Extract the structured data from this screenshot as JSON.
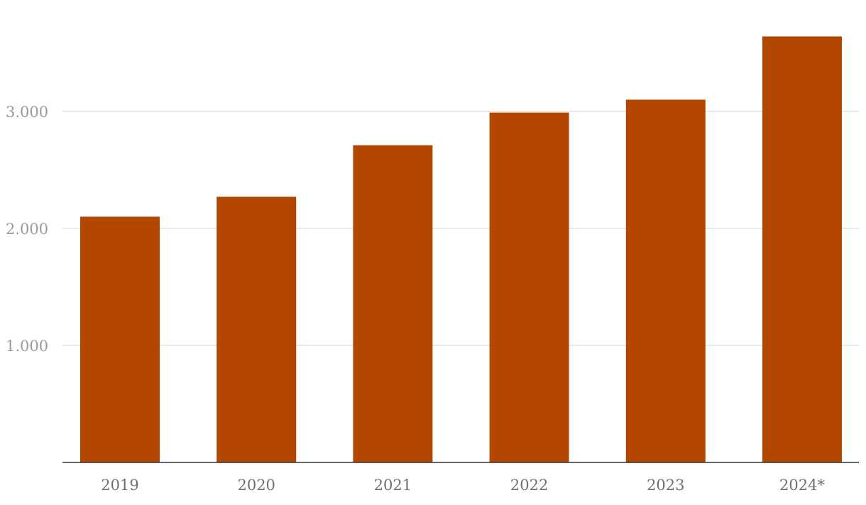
{
  "chart_data": {
    "type": "bar",
    "categories": [
      "2019",
      "2020",
      "2021",
      "2022",
      "2023",
      "2024*"
    ],
    "values": [
      2100,
      2270,
      2710,
      2990,
      3100,
      3640
    ],
    "title": "",
    "xlabel": "",
    "ylabel": "",
    "ylim": [
      0,
      3800
    ],
    "yticks": [
      1000,
      2000,
      3000
    ],
    "ytick_labels": [
      "1.000",
      "2.000",
      "3.000"
    ],
    "grid": true,
    "legend": "none",
    "colors": {
      "bar": "#b34700",
      "grid": "#e3e3e3",
      "axis": "#333333"
    }
  }
}
